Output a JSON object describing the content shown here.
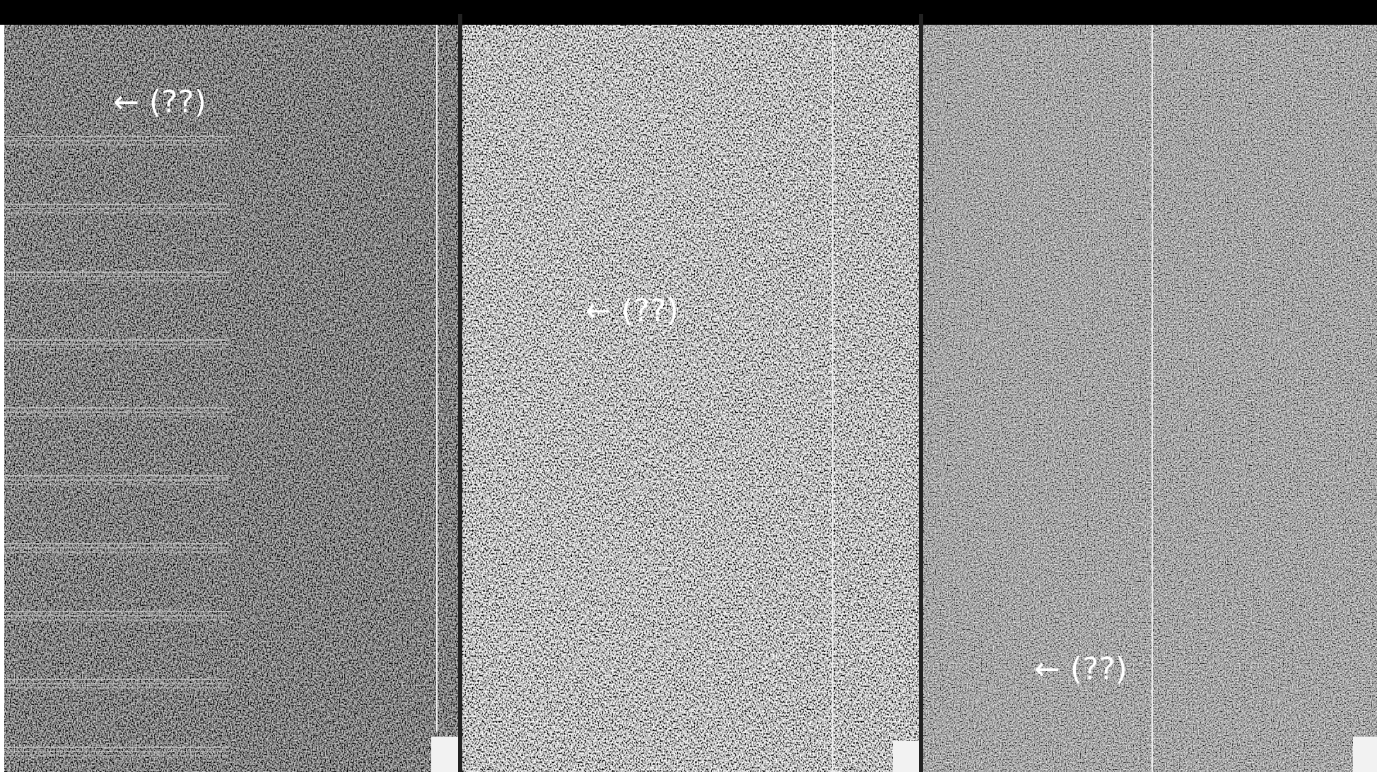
{
  "panels": [
    {
      "annotation": "← (??)"
    },
    {
      "annotation": "← (??)"
    },
    {
      "annotation": "← (??)"
    }
  ]
}
